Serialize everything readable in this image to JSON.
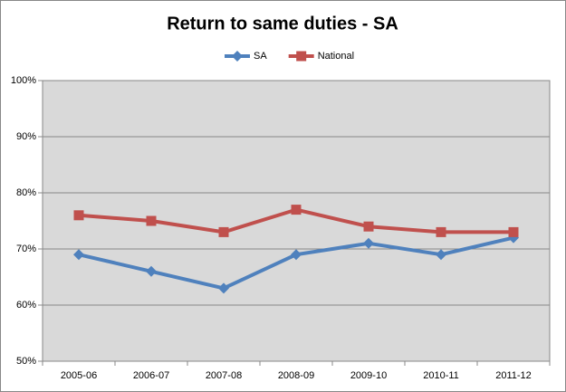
{
  "chart_data": {
    "type": "line",
    "title": "Return to same duties - SA",
    "categories": [
      "2005-06",
      "2006-07",
      "2007-08",
      "2008-09",
      "2009-10",
      "2010-11",
      "2011-12"
    ],
    "series": [
      {
        "name": "SA",
        "color": "#4f81bd",
        "marker": "diamond",
        "values": [
          69,
          66,
          63,
          69,
          71,
          69,
          72
        ]
      },
      {
        "name": "National",
        "color": "#c0504d",
        "marker": "square",
        "values": [
          76,
          75,
          73,
          77,
          74,
          73,
          73
        ]
      }
    ],
    "ylim": [
      50,
      100
    ],
    "yticks": [
      {
        "value": 50,
        "label": "50%"
      },
      {
        "value": 60,
        "label": "60%"
      },
      {
        "value": 70,
        "label": "70%"
      },
      {
        "value": 80,
        "label": "80%"
      },
      {
        "value": 90,
        "label": "90%"
      },
      {
        "value": 100,
        "label": "100%"
      }
    ],
    "grid": true,
    "legend": "top"
  }
}
